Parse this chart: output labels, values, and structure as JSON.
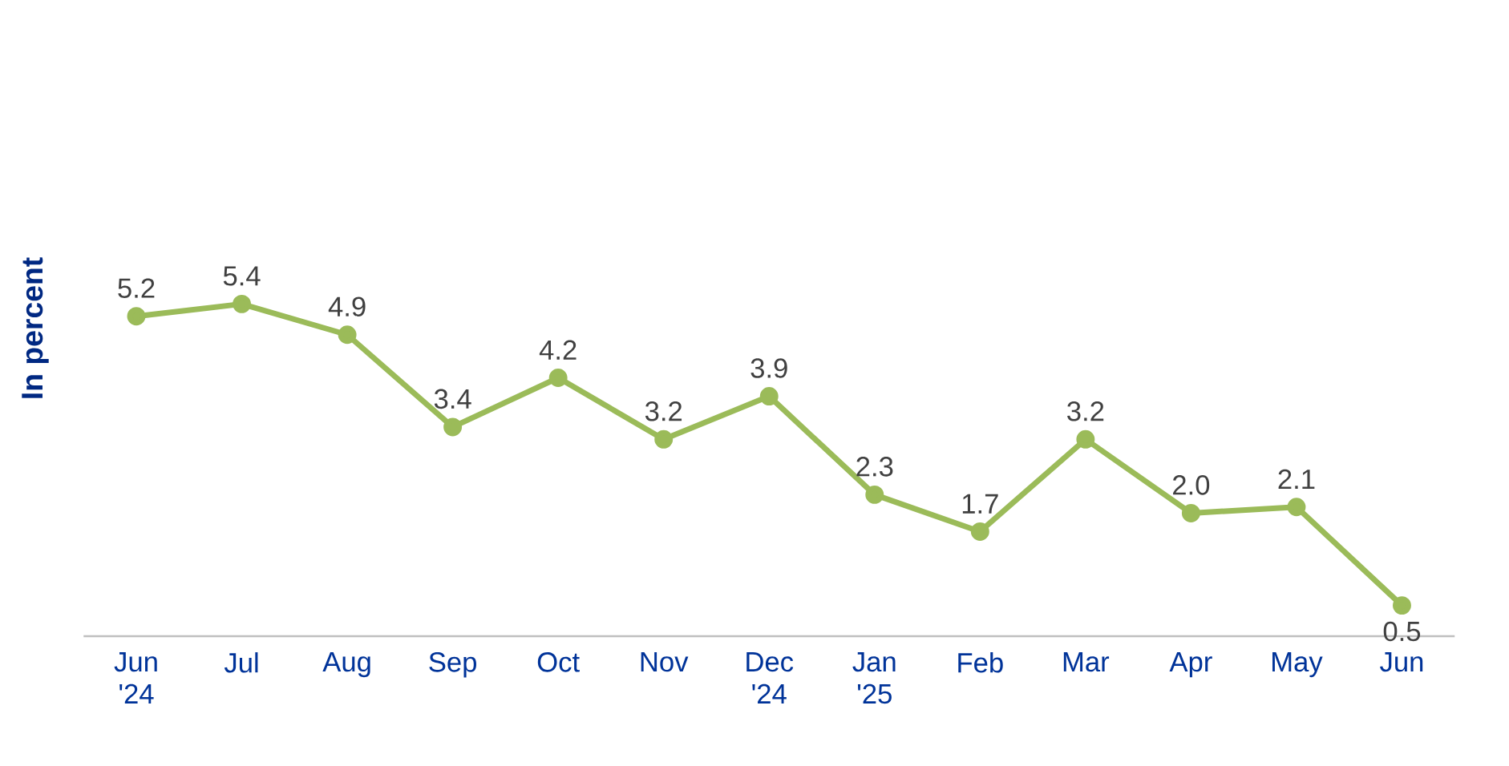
{
  "chart_data": {
    "type": "line",
    "ylabel": "In percent",
    "categories": [
      "Jun '24",
      "Jul",
      "Aug",
      "Sep",
      "Oct",
      "Nov",
      "Dec '24",
      "Jan '25",
      "Feb",
      "Mar",
      "Apr",
      "May",
      "Jun"
    ],
    "series": [
      {
        "color": "#9bbb59",
        "values": [
          5.2,
          5.4,
          4.9,
          3.4,
          4.2,
          3.2,
          3.9,
          2.3,
          1.7,
          3.2,
          2.0,
          2.1,
          0.5
        ],
        "value_labels": [
          "5.2",
          "5.4",
          "4.9",
          "3.4",
          "4.2",
          "3.2",
          "3.9",
          "2.3",
          "1.7",
          "3.2",
          "2.0",
          "2.1",
          "0.5"
        ]
      }
    ],
    "marker": "circle",
    "line_style": "solid"
  }
}
